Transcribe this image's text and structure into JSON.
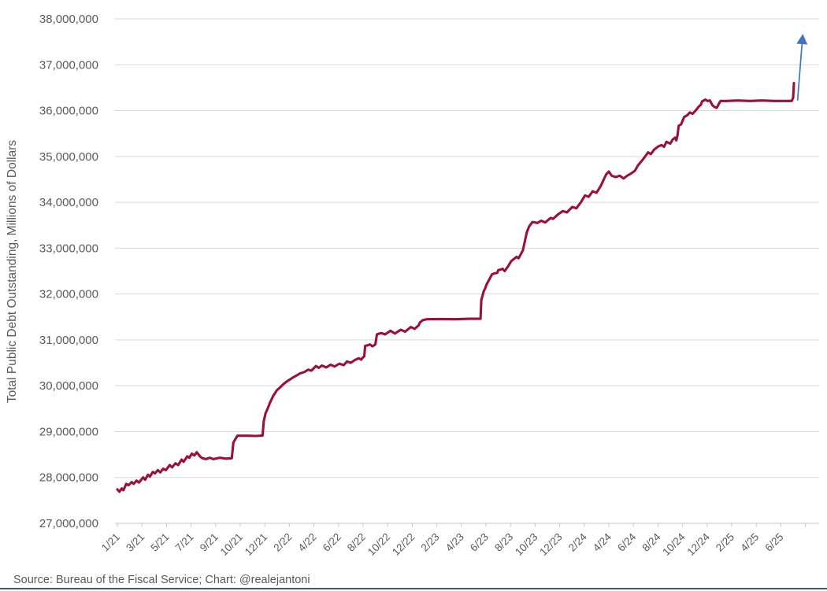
{
  "footer": {
    "source_note": "Source: Bureau of the Fiscal Service; Chart: @realejantoni"
  },
  "chart_data": {
    "type": "line",
    "title": "",
    "xlabel": "",
    "ylabel": "Total Public Debt Outstanding, Millions of Dollars",
    "ylim": [
      27000000,
      38000000
    ],
    "grid": "horizontal",
    "legend": "none",
    "colors": {
      "line": "#9B1037",
      "arrow": "#4472C4",
      "gridline": "#D9D9D9",
      "axis": "#C6C6C6",
      "text": "#595959",
      "bottom_border": "#3A5A73"
    },
    "y_ticks": [
      27000000,
      28000000,
      29000000,
      30000000,
      31000000,
      32000000,
      33000000,
      34000000,
      35000000,
      36000000,
      37000000,
      38000000
    ],
    "y_tick_labels": [
      "27,000,000",
      "28,000,000",
      "29,000,000",
      "30,000,000",
      "31,000,000",
      "32,000,000",
      "33,000,000",
      "34,000,000",
      "35,000,000",
      "36,000,000",
      "37,000,000",
      "38,000,000"
    ],
    "x_tick_labels": [
      "1/21",
      "3/21",
      "5/21",
      "7/21",
      "9/21",
      "10/21",
      "12/21",
      "2/22",
      "4/22",
      "6/22",
      "8/22",
      "10/22",
      "12/22",
      "2/23",
      "4/23",
      "6/23",
      "8/23",
      "10/23",
      "12/23",
      "2/24",
      "4/24",
      "6/24",
      "8/24",
      "10/24",
      "12/24",
      "2/25",
      "4/25",
      "6/25"
    ],
    "x_tick_months_from_jan2021": [
      0,
      2,
      4,
      6,
      8,
      9,
      11,
      13,
      15,
      17,
      19,
      21,
      23,
      25,
      27,
      29,
      31,
      33,
      35,
      37,
      39,
      41,
      43,
      45,
      47,
      49,
      51,
      53
    ],
    "series": [
      {
        "name": "Total Public Debt Outstanding",
        "unit": "millions of dollars",
        "points": [
          [
            "2021-01-01",
            27740000
          ],
          [
            "2021-01-06",
            27690000
          ],
          [
            "2021-01-12",
            27760000
          ],
          [
            "2021-01-16",
            27720000
          ],
          [
            "2021-01-23",
            27860000
          ],
          [
            "2021-01-29",
            27830000
          ],
          [
            "2021-02-06",
            27900000
          ],
          [
            "2021-02-11",
            27860000
          ],
          [
            "2021-02-18",
            27930000
          ],
          [
            "2021-02-24",
            27890000
          ],
          [
            "2021-03-04",
            28000000
          ],
          [
            "2021-03-09",
            27950000
          ],
          [
            "2021-03-16",
            28060000
          ],
          [
            "2021-03-21",
            28020000
          ],
          [
            "2021-03-28",
            28120000
          ],
          [
            "2021-04-03",
            28090000
          ],
          [
            "2021-04-10",
            28160000
          ],
          [
            "2021-04-16",
            28110000
          ],
          [
            "2021-04-23",
            28190000
          ],
          [
            "2021-04-30",
            28160000
          ],
          [
            "2021-05-09",
            28270000
          ],
          [
            "2021-05-15",
            28220000
          ],
          [
            "2021-05-23",
            28310000
          ],
          [
            "2021-05-30",
            28270000
          ],
          [
            "2021-06-08",
            28390000
          ],
          [
            "2021-06-13",
            28340000
          ],
          [
            "2021-06-22",
            28460000
          ],
          [
            "2021-06-27",
            28430000
          ],
          [
            "2021-07-03",
            28520000
          ],
          [
            "2021-07-09",
            28480000
          ],
          [
            "2021-07-15",
            28550000
          ],
          [
            "2021-07-23",
            28460000
          ],
          [
            "2021-07-29",
            28420000
          ],
          [
            "2021-08-07",
            28400000
          ],
          [
            "2021-08-17",
            28430000
          ],
          [
            "2021-08-26",
            28400000
          ],
          [
            "2021-09-06",
            28430000
          ],
          [
            "2021-09-14",
            28410000
          ],
          [
            "2021-09-21",
            28420000
          ],
          [
            "2021-09-23",
            28760000
          ],
          [
            "2021-09-28",
            28910000
          ],
          [
            "2021-10-20",
            28910000
          ],
          [
            "2021-11-10",
            28905000
          ],
          [
            "2021-11-26",
            28915000
          ],
          [
            "2021-11-29",
            29230000
          ],
          [
            "2021-12-03",
            29400000
          ],
          [
            "2021-12-08",
            29500000
          ],
          [
            "2021-12-14",
            29630000
          ],
          [
            "2021-12-22",
            29780000
          ],
          [
            "2021-12-31",
            29900000
          ],
          [
            "2022-01-08",
            29960000
          ],
          [
            "2022-01-16",
            30030000
          ],
          [
            "2022-01-26",
            30100000
          ],
          [
            "2022-02-12",
            30190000
          ],
          [
            "2022-02-20",
            30230000
          ],
          [
            "2022-02-28",
            30270000
          ],
          [
            "2022-03-08",
            30300000
          ],
          [
            "2022-03-17",
            30350000
          ],
          [
            "2022-03-25",
            30330000
          ],
          [
            "2022-04-06",
            30430000
          ],
          [
            "2022-04-13",
            30390000
          ],
          [
            "2022-04-21",
            30440000
          ],
          [
            "2022-05-01",
            30400000
          ],
          [
            "2022-05-12",
            30460000
          ],
          [
            "2022-05-22",
            30420000
          ],
          [
            "2022-06-03",
            30480000
          ],
          [
            "2022-06-14",
            30450000
          ],
          [
            "2022-06-22",
            30530000
          ],
          [
            "2022-07-01",
            30500000
          ],
          [
            "2022-07-11",
            30560000
          ],
          [
            "2022-07-21",
            30600000
          ],
          [
            "2022-07-27",
            30570000
          ],
          [
            "2022-07-31",
            30620000
          ],
          [
            "2022-08-04",
            30640000
          ],
          [
            "2022-08-06",
            30870000
          ],
          [
            "2022-08-12",
            30880000
          ],
          [
            "2022-08-18",
            30900000
          ],
          [
            "2022-08-24",
            30860000
          ],
          [
            "2022-08-30",
            30890000
          ],
          [
            "2022-09-01",
            30910000
          ],
          [
            "2022-09-05",
            31120000
          ],
          [
            "2022-09-15",
            31150000
          ],
          [
            "2022-09-25",
            31120000
          ],
          [
            "2022-10-08",
            31200000
          ],
          [
            "2022-10-19",
            31140000
          ],
          [
            "2022-11-03",
            31220000
          ],
          [
            "2022-11-14",
            31180000
          ],
          [
            "2022-11-28",
            31280000
          ],
          [
            "2022-12-07",
            31240000
          ],
          [
            "2022-12-17",
            31320000
          ],
          [
            "2022-12-20",
            31380000
          ],
          [
            "2022-12-27",
            31430000
          ],
          [
            "2023-01-06",
            31450000
          ],
          [
            "2023-02-10",
            31455000
          ],
          [
            "2023-03-15",
            31450000
          ],
          [
            "2023-04-20",
            31460000
          ],
          [
            "2023-05-18",
            31460000
          ],
          [
            "2023-05-20",
            31870000
          ],
          [
            "2023-05-26",
            32060000
          ],
          [
            "2023-05-30",
            32130000
          ],
          [
            "2023-06-02",
            32200000
          ],
          [
            "2023-06-10",
            32330000
          ],
          [
            "2023-06-16",
            32430000
          ],
          [
            "2023-06-22",
            32450000
          ],
          [
            "2023-06-29",
            32460000
          ],
          [
            "2023-07-01",
            32520000
          ],
          [
            "2023-07-05",
            32530000
          ],
          [
            "2023-07-12",
            32550000
          ],
          [
            "2023-07-17",
            32500000
          ],
          [
            "2023-07-25",
            32600000
          ],
          [
            "2023-08-03",
            32720000
          ],
          [
            "2023-08-16",
            32810000
          ],
          [
            "2023-08-21",
            32780000
          ],
          [
            "2023-09-01",
            32950000
          ],
          [
            "2023-09-06",
            33150000
          ],
          [
            "2023-09-11",
            33350000
          ],
          [
            "2023-09-17",
            33480000
          ],
          [
            "2023-09-25",
            33570000
          ],
          [
            "2023-10-07",
            33550000
          ],
          [
            "2023-10-16",
            33600000
          ],
          [
            "2023-10-26",
            33560000
          ],
          [
            "2023-11-09",
            33660000
          ],
          [
            "2023-11-15",
            33640000
          ],
          [
            "2023-11-28",
            33740000
          ],
          [
            "2023-12-09",
            33810000
          ],
          [
            "2023-12-19",
            33780000
          ],
          [
            "2024-01-02",
            33900000
          ],
          [
            "2024-01-12",
            33870000
          ],
          [
            "2024-01-23",
            34000000
          ],
          [
            "2024-02-03",
            34150000
          ],
          [
            "2024-02-12",
            34120000
          ],
          [
            "2024-02-22",
            34240000
          ],
          [
            "2024-03-01",
            34210000
          ],
          [
            "2024-03-11",
            34350000
          ],
          [
            "2024-03-19",
            34500000
          ],
          [
            "2024-03-25",
            34610000
          ],
          [
            "2024-04-01",
            34670000
          ],
          [
            "2024-04-08",
            34580000
          ],
          [
            "2024-04-18",
            34550000
          ],
          [
            "2024-04-28",
            34580000
          ],
          [
            "2024-05-07",
            34520000
          ],
          [
            "2024-05-16",
            34580000
          ],
          [
            "2024-05-26",
            34630000
          ],
          [
            "2024-06-05",
            34690000
          ],
          [
            "2024-06-12",
            34800000
          ],
          [
            "2024-06-25",
            34940000
          ],
          [
            "2024-07-07",
            35090000
          ],
          [
            "2024-07-14",
            35050000
          ],
          [
            "2024-07-22",
            35150000
          ],
          [
            "2024-08-02",
            35220000
          ],
          [
            "2024-08-10",
            35250000
          ],
          [
            "2024-08-16",
            35210000
          ],
          [
            "2024-08-22",
            35320000
          ],
          [
            "2024-09-01",
            35280000
          ],
          [
            "2024-09-07",
            35370000
          ],
          [
            "2024-09-13",
            35410000
          ],
          [
            "2024-09-16",
            35350000
          ],
          [
            "2024-09-19",
            35460000
          ],
          [
            "2024-09-22",
            35670000
          ],
          [
            "2024-09-28",
            35700000
          ],
          [
            "2024-10-05",
            35860000
          ],
          [
            "2024-10-13",
            35900000
          ],
          [
            "2024-10-19",
            35960000
          ],
          [
            "2024-10-26",
            35930000
          ],
          [
            "2024-11-03",
            36000000
          ],
          [
            "2024-11-10",
            36080000
          ],
          [
            "2024-11-16",
            36130000
          ],
          [
            "2024-11-19",
            36200000
          ],
          [
            "2024-11-27",
            36240000
          ],
          [
            "2024-12-02",
            36210000
          ],
          [
            "2024-12-08",
            36220000
          ],
          [
            "2024-12-14",
            36120000
          ],
          [
            "2024-12-19",
            36080000
          ],
          [
            "2024-12-25",
            36060000
          ],
          [
            "2025-01-01",
            36170000
          ],
          [
            "2025-01-04",
            36210000
          ],
          [
            "2025-01-20",
            36210000
          ],
          [
            "2025-02-15",
            36220000
          ],
          [
            "2025-03-15",
            36210000
          ],
          [
            "2025-04-15",
            36220000
          ],
          [
            "2025-05-15",
            36210000
          ],
          [
            "2025-06-15",
            36210000
          ],
          [
            "2025-06-28",
            36210000
          ],
          [
            "2025-07-01",
            36280000
          ],
          [
            "2025-07-03",
            36600000
          ]
        ]
      }
    ],
    "annotation_arrow": {
      "type": "arrow",
      "color": "#4472C4",
      "from": [
        "2025-07-12",
        36220000
      ],
      "to": [
        "2025-07-23",
        37450000
      ]
    }
  }
}
